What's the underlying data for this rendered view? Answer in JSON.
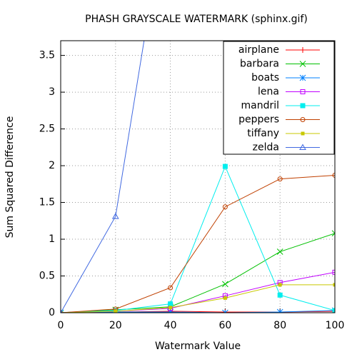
{
  "chart_data": {
    "type": "line",
    "title": "PHASH GRAYSCALE WATERMARK (sphinx.gif)",
    "xlabel": "Watermark Value",
    "ylabel": "Sum Squared Difference",
    "x": [
      0,
      20,
      40,
      60,
      80,
      100
    ],
    "xlim": [
      0,
      100
    ],
    "xticks": [
      0,
      20,
      40,
      60,
      80,
      100
    ],
    "ylim": [
      0,
      3.7
    ],
    "yticks": [
      0,
      0.5,
      1,
      1.5,
      2,
      2.5,
      3,
      3.5
    ],
    "grid": true,
    "legend": "top-right",
    "series": [
      {
        "name": "airplane",
        "color": "#ff0000",
        "marker": "plus",
        "values": [
          0,
          0.01,
          0.02,
          0.01,
          0.01,
          0.02
        ]
      },
      {
        "name": "barbara",
        "color": "#00c000",
        "marker": "cross",
        "values": [
          0,
          0.04,
          0.08,
          0.39,
          0.83,
          1.08
        ]
      },
      {
        "name": "boats",
        "color": "#0080ff",
        "marker": "star",
        "values": [
          0,
          0.01,
          0.01,
          0,
          0.01,
          0.03
        ]
      },
      {
        "name": "lena",
        "color": "#c000ff",
        "marker": "square-open",
        "values": [
          0,
          0.02,
          0.06,
          0.23,
          0.41,
          0.55
        ]
      },
      {
        "name": "mandril",
        "color": "#00eeee",
        "marker": "square-filled",
        "values": [
          0,
          0.03,
          0.12,
          1.99,
          0.24,
          0.03
        ]
      },
      {
        "name": "peppers",
        "color": "#c04000",
        "marker": "circle-open",
        "values": [
          0,
          0.05,
          0.34,
          1.44,
          1.82,
          1.87
        ]
      },
      {
        "name": "tiffany",
        "color": "#c8c800",
        "marker": "square-small",
        "values": [
          0,
          0.02,
          0.07,
          0.2,
          0.38,
          0.38
        ]
      },
      {
        "name": "zelda",
        "color": "#4169e1",
        "marker": "triangle-open",
        "values": [
          0,
          1.31,
          5.9,
          null,
          null,
          null
        ]
      }
    ]
  }
}
